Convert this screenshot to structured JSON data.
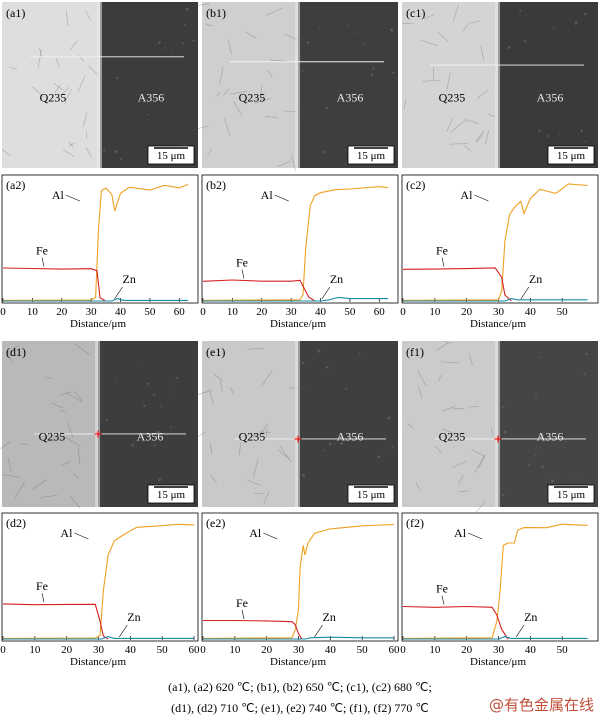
{
  "micro_panels": [
    {
      "id": "a1",
      "label": "(a1)",
      "left": "Q235",
      "right": "A356",
      "scale": "15 μm",
      "left_color": "#dedede",
      "right_color": "#3c3c3c",
      "marker": false
    },
    {
      "id": "b1",
      "label": "(b1)",
      "left": "Q235",
      "right": "A356",
      "scale": "15 μm",
      "left_color": "#cfcfcf",
      "right_color": "#3e3e3e",
      "marker": false
    },
    {
      "id": "c1",
      "label": "(c1)",
      "left": "Q235",
      "right": "A356",
      "scale": "15 μm",
      "left_color": "#d4d4d4",
      "right_color": "#3a3a3a",
      "marker": false
    },
    {
      "id": "d1",
      "label": "(d1)",
      "left": "Q235",
      "right": "A356",
      "scale": "15 μm",
      "left_color": "#b9b9b9",
      "right_color": "#3d3d3d",
      "marker": true
    },
    {
      "id": "e1",
      "label": "(e1)",
      "left": "Q235",
      "right": "A356",
      "scale": "15 μm",
      "left_color": "#c9c9c9",
      "right_color": "#3f3f3f",
      "marker": true
    },
    {
      "id": "f1",
      "label": "(f1)",
      "left": "Q235",
      "right": "A356",
      "scale": "15 μm",
      "left_color": "#cbcbcb",
      "right_color": "#454545",
      "marker": true
    }
  ],
  "chart_data": [
    {
      "type": "line",
      "panel": "(a2)",
      "xlabel": "Distance/μm",
      "xlim": [
        0,
        65
      ],
      "xticks": [
        0,
        10,
        20,
        30,
        40,
        50,
        60
      ],
      "series": [
        {
          "name": "Al",
          "points": [
            [
              0,
              0.5
            ],
            [
              30,
              0.8
            ],
            [
              31.5,
              3
            ],
            [
              32.5,
              60
            ],
            [
              33.5,
              92
            ],
            [
              35,
              94
            ],
            [
              37,
              90
            ],
            [
              38,
              76
            ],
            [
              40,
              90
            ],
            [
              43,
              96
            ],
            [
              50,
              93
            ],
            [
              55,
              96
            ],
            [
              60,
              95
            ],
            [
              63,
              96
            ]
          ]
        },
        {
          "name": "Fe",
          "points": [
            [
              0,
              27
            ],
            [
              10,
              27
            ],
            [
              20,
              27
            ],
            [
              30,
              27
            ],
            [
              32,
              25
            ],
            [
              33,
              3
            ],
            [
              35,
              0
            ]
          ]
        },
        {
          "name": "Zn",
          "points": [
            [
              0,
              0
            ],
            [
              37,
              0
            ],
            [
              39,
              2
            ],
            [
              41,
              0.5
            ],
            [
              63,
              0.5
            ]
          ]
        }
      ]
    },
    {
      "type": "line",
      "panel": "(b2)",
      "xlabel": "Distance/μm",
      "xlim": [
        0,
        65
      ],
      "xticks": [
        0,
        10,
        20,
        30,
        40,
        50,
        60
      ],
      "series": [
        {
          "name": "Al",
          "points": [
            [
              0,
              0.5
            ],
            [
              33,
              1
            ],
            [
              34,
              5
            ],
            [
              35,
              45
            ],
            [
              36.5,
              80
            ],
            [
              38,
              88
            ],
            [
              40,
              91
            ],
            [
              45,
              94
            ],
            [
              50,
              94
            ],
            [
              60,
              95
            ],
            [
              63,
              94
            ]
          ]
        },
        {
          "name": "Fe",
          "points": [
            [
              0,
              17
            ],
            [
              10,
              17
            ],
            [
              20,
              17
            ],
            [
              30,
              17
            ],
            [
              33,
              17
            ],
            [
              34.5,
              10
            ],
            [
              36,
              3
            ],
            [
              38,
              0
            ]
          ]
        },
        {
          "name": "Zn",
          "points": [
            [
              0,
              0
            ],
            [
              40,
              0
            ],
            [
              43,
              1
            ],
            [
              46,
              3
            ],
            [
              50,
              2
            ],
            [
              63,
              2
            ]
          ]
        }
      ]
    },
    {
      "type": "line",
      "panel": "(c2)",
      "xlabel": "Distance/μm",
      "xlim": [
        0,
        60
      ],
      "xticks": [
        0,
        10,
        20,
        30,
        40,
        50
      ],
      "series": [
        {
          "name": "Al",
          "points": [
            [
              0,
              0.5
            ],
            [
              30,
              1
            ],
            [
              31,
              8
            ],
            [
              32,
              50
            ],
            [
              33.5,
              72
            ],
            [
              35,
              78
            ],
            [
              37,
              82
            ],
            [
              38,
              74
            ],
            [
              40,
              86
            ],
            [
              43,
              94
            ],
            [
              48,
              90
            ],
            [
              52,
              98
            ],
            [
              58,
              97
            ]
          ]
        },
        {
          "name": "Fe",
          "points": [
            [
              0,
              27
            ],
            [
              10,
              27
            ],
            [
              20,
              27
            ],
            [
              29,
              27
            ],
            [
              31,
              20
            ],
            [
              32,
              5
            ],
            [
              34,
              0
            ]
          ]
        },
        {
          "name": "Zn",
          "points": [
            [
              0,
              0
            ],
            [
              32,
              0
            ],
            [
              34,
              2
            ],
            [
              36,
              1
            ],
            [
              58,
              1
            ]
          ]
        }
      ]
    },
    {
      "type": "line",
      "panel": "(d2)",
      "xlabel": "Distance/μm",
      "xlim": [
        0,
        60
      ],
      "xticks": [
        0,
        10,
        20,
        30,
        40,
        50,
        60
      ],
      "series": [
        {
          "name": "Al",
          "points": [
            [
              0,
              0.5
            ],
            [
              29,
              0.8
            ],
            [
              30.5,
              3
            ],
            [
              31.5,
              40
            ],
            [
              33,
              70
            ],
            [
              35,
              82
            ],
            [
              38,
              88
            ],
            [
              42,
              92
            ],
            [
              50,
              94
            ],
            [
              55,
              95
            ],
            [
              60,
              94
            ]
          ]
        },
        {
          "name": "Fe",
          "points": [
            [
              0,
              29
            ],
            [
              10,
              29
            ],
            [
              20,
              29
            ],
            [
              29,
              29
            ],
            [
              30.5,
              15
            ],
            [
              31.5,
              3
            ],
            [
              33,
              0
            ]
          ]
        },
        {
          "name": "Zn",
          "points": [
            [
              0,
              0
            ],
            [
              31,
              0
            ],
            [
              33,
              2
            ],
            [
              35,
              0.5
            ],
            [
              60,
              0.5
            ]
          ]
        }
      ]
    },
    {
      "type": "line",
      "panel": "(e2)",
      "xlabel": "Distance/μm",
      "xlim": [
        0,
        60
      ],
      "xticks": [
        0,
        10,
        20,
        30,
        40,
        50,
        60
      ],
      "series": [
        {
          "name": "Al",
          "points": [
            [
              0,
              0.5
            ],
            [
              28,
              1
            ],
            [
              29,
              8
            ],
            [
              30,
              25
            ],
            [
              30.5,
              60
            ],
            [
              31.5,
              78
            ],
            [
              32,
              70
            ],
            [
              33,
              80
            ],
            [
              35,
              88
            ],
            [
              40,
              91
            ],
            [
              50,
              94
            ],
            [
              60,
              95
            ]
          ]
        },
        {
          "name": "Fe",
          "points": [
            [
              0,
              15
            ],
            [
              10,
              15
            ],
            [
              20,
              15
            ],
            [
              28,
              15
            ],
            [
              29,
              12
            ],
            [
              30,
              4
            ],
            [
              31,
              0
            ]
          ]
        },
        {
          "name": "Zn",
          "points": [
            [
              0,
              0
            ],
            [
              32,
              0
            ],
            [
              34,
              1
            ],
            [
              40,
              1.5
            ],
            [
              50,
              1
            ],
            [
              60,
              1
            ]
          ]
        }
      ]
    },
    {
      "type": "line",
      "panel": "(f2)",
      "xlabel": "Distance/μm",
      "xlim": [
        0,
        60
      ],
      "xticks": [
        0,
        10,
        20,
        30,
        40,
        50
      ],
      "series": [
        {
          "name": "Al",
          "points": [
            [
              0,
              0.5
            ],
            [
              28,
              1
            ],
            [
              29.5,
              15
            ],
            [
              30.5,
              40
            ],
            [
              31.5,
              78
            ],
            [
              33,
              80
            ],
            [
              35,
              80
            ],
            [
              36,
              90
            ],
            [
              38,
              92
            ],
            [
              45,
              93
            ],
            [
              50,
              95
            ],
            [
              58,
              95
            ]
          ]
        },
        {
          "name": "Fe",
          "points": [
            [
              0,
              27
            ],
            [
              10,
              27
            ],
            [
              20,
              27
            ],
            [
              28,
              27
            ],
            [
              29.5,
              20
            ],
            [
              31,
              8
            ],
            [
              33,
              0
            ]
          ]
        },
        {
          "name": "Zn",
          "points": [
            [
              0,
              0
            ],
            [
              30,
              0
            ],
            [
              32,
              2
            ],
            [
              34,
              0.5
            ],
            [
              58,
              0.5
            ]
          ]
        }
      ]
    }
  ],
  "caption_line1": "(a1), (a2) 620 ℃; (b1), (b2) 650 ℃; (c1), (c2) 680 ℃;",
  "caption_line2": "(d1), (d2) 710 ℃; (e1), (e2) 740 ℃; (f1), (f2) 770 ℃",
  "watermark": "@有色金属在线",
  "colors": {
    "Al": "#f0a020",
    "Fe": "#d42020",
    "Zn": "#1a8aa8",
    "marker": "#ff0000"
  }
}
